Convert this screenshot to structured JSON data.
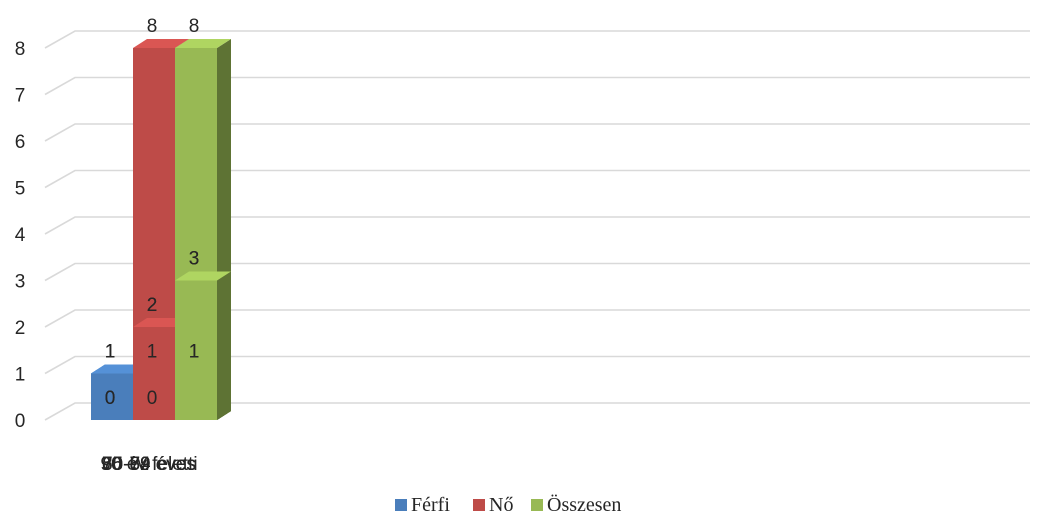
{
  "chart_data": {
    "type": "bar",
    "categories": [
      "65-69 éves",
      "70-74 éves",
      "75-79 éves",
      "80-89 éves",
      "90 év feletti"
    ],
    "series": [
      {
        "name": "Férfi",
        "values": [
          1,
          1,
          0,
          0,
          1
        ],
        "color": "#4a7ebb"
      },
      {
        "name": "Nő",
        "values": [
          0,
          2,
          1,
          8,
          2
        ],
        "color": "#be4b48"
      },
      {
        "name": "Összesen",
        "values": [
          1,
          3,
          1,
          8,
          3
        ],
        "color": "#98b954"
      }
    ],
    "y_tick_labels": [
      "0",
      "1",
      "2",
      "3",
      "4",
      "5",
      "6",
      "7",
      "8"
    ],
    "data_labels": [
      [
        "1",
        "1",
        "0",
        "0",
        "1"
      ],
      [
        "0",
        "2",
        "1",
        "8",
        "2"
      ],
      [
        "1",
        "3",
        "1",
        "8",
        "3"
      ]
    ],
    "ylim": [
      0,
      8
    ],
    "grid": true,
    "style": "3d-clustered-column",
    "legend_position": "bottom",
    "title": "",
    "xlabel": "",
    "ylabel": ""
  }
}
